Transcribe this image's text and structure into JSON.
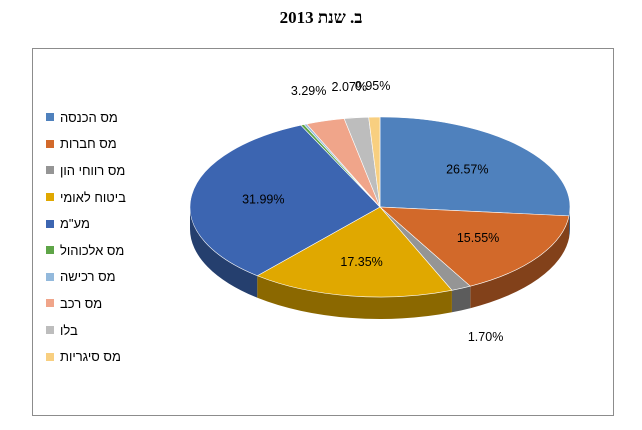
{
  "title": "ב. שנת 2013",
  "chart_data": {
    "type": "pie",
    "title": "ב. שנת 2013",
    "legend_position": "left",
    "categories": [
      "מס הכנסה",
      "מס חברות",
      "מס רווחי הון",
      "ביטוח לאומי",
      "מע\"מ",
      "מס אלכוהול",
      "מס רכישה",
      "מס רכב",
      "בלו",
      "מס סיגריות"
    ],
    "values": [
      26.57,
      15.55,
      1.7,
      17.35,
      31.99,
      0.3,
      0.23,
      3.29,
      2.07,
      0.95
    ],
    "data_labels": [
      "26.57%",
      "15.55%",
      "1.70%",
      "17.35%",
      "31.99%",
      "",
      "",
      "3.29%",
      "2.07%",
      "0.95%"
    ],
    "colors": [
      "#4f81bd",
      "#d2692a",
      "#959595",
      "#e0a800",
      "#3c65b1",
      "#5ea547",
      "#93b9dc",
      "#f0a58a",
      "#bdbdbd",
      "#f8cf80"
    ]
  }
}
